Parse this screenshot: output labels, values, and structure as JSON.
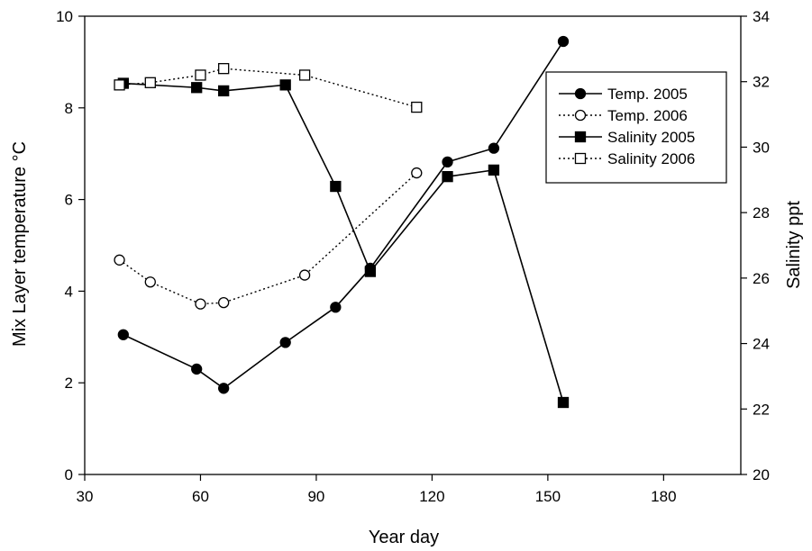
{
  "chart_data": {
    "type": "line",
    "xlabel": "Year day",
    "ylabel_left": "Mix Layer temperature °C",
    "ylabel_right": "Salinity ppt",
    "xlim": [
      30,
      200
    ],
    "xticks": [
      30,
      60,
      90,
      120,
      150,
      180
    ],
    "ylim_left": [
      0,
      10
    ],
    "yticks_left": [
      0,
      2,
      4,
      6,
      8,
      10
    ],
    "ylim_right": [
      20,
      34
    ],
    "yticks_right": [
      20,
      22,
      24,
      26,
      28,
      30,
      32,
      34
    ],
    "grid": false,
    "legend_position": "top-right",
    "series": [
      {
        "name": "Temp. 2005",
        "axis": "left",
        "marker": "circle",
        "filled": true,
        "line": "solid",
        "x": [
          40,
          59,
          66,
          82,
          95,
          104,
          124,
          136,
          154
        ],
        "y": [
          3.05,
          2.3,
          1.88,
          2.88,
          3.65,
          4.5,
          6.82,
          7.12,
          9.45
        ]
      },
      {
        "name": "Temp. 2006",
        "axis": "left",
        "marker": "circle",
        "filled": false,
        "line": "dotted",
        "x": [
          39,
          47,
          60,
          66,
          87,
          116
        ],
        "y": [
          4.68,
          4.2,
          3.72,
          3.75,
          4.35,
          6.58
        ]
      },
      {
        "name": "Salinity 2005",
        "axis": "right",
        "marker": "square",
        "filled": true,
        "line": "solid",
        "x": [
          40,
          59,
          66,
          82,
          95,
          104,
          124,
          136,
          154
        ],
        "y": [
          31.95,
          31.82,
          31.72,
          31.9,
          28.8,
          26.2,
          29.1,
          29.3,
          22.2
        ]
      },
      {
        "name": "Salinity 2006",
        "axis": "right",
        "marker": "square",
        "filled": false,
        "line": "dotted",
        "x": [
          39,
          47,
          60,
          66,
          87,
          116
        ],
        "y": [
          31.9,
          31.97,
          32.2,
          32.4,
          32.2,
          31.22
        ]
      }
    ]
  }
}
